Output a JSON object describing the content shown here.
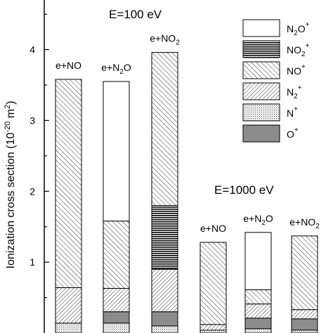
{
  "chart_data": {
    "type": "bar",
    "stacked": true,
    "title": "",
    "ylabel": {
      "main": "Ionization cross section (10",
      "exp": "-20",
      "unit": " m",
      "unit_exp": "2",
      "close": ")"
    },
    "ylim": [
      0,
      4.7
    ],
    "yticks": [
      1,
      2,
      3,
      4
    ],
    "grid": false,
    "legend_position": "top-right",
    "groups": [
      {
        "label": "E=100 eV",
        "label_parts": {
          "main": "E=100 eV"
        }
      },
      {
        "label": "E=1000 eV",
        "label_parts": {
          "main": "E=1000 eV"
        }
      }
    ],
    "categories": [
      {
        "label": "e+NO",
        "parts": {
          "main": "e+NO",
          "sub": ""
        },
        "group": 0
      },
      {
        "label": "e+N2O",
        "parts": {
          "main": "e+N",
          "sub": "2",
          "tail": "O"
        },
        "group": 0
      },
      {
        "label": "e+NO2",
        "parts": {
          "main": "e+NO",
          "sub": "2",
          "tail": ""
        },
        "group": 0
      },
      {
        "label": "e+NO",
        "parts": {
          "main": "e+NO",
          "sub": ""
        },
        "group": 1
      },
      {
        "label": "e+N2O",
        "parts": {
          "main": "e+N",
          "sub": "2",
          "tail": "O"
        },
        "group": 1
      },
      {
        "label": "e+NO2",
        "parts": {
          "main": "e+NO",
          "sub": "2",
          "tail": ""
        },
        "group": 1
      }
    ],
    "series": [
      {
        "key": "N+",
        "legend": {
          "main": "N",
          "sub": "",
          "sup": "+"
        },
        "pattern": "dots",
        "values": [
          0.14,
          0.14,
          0.1,
          0.04,
          0.06,
          0.04
        ]
      },
      {
        "key": "O+",
        "legend": {
          "main": "O",
          "sub": "",
          "sup": "+"
        },
        "pattern": "gray",
        "values": [
          0.0,
          0.16,
          0.2,
          0.0,
          0.15,
          0.16
        ]
      },
      {
        "key": "N2+",
        "legend": {
          "main": "N",
          "sub": "2",
          "sup": "+"
        },
        "pattern": "hatch-fine",
        "values": [
          0.5,
          0.33,
          0.6,
          0.08,
          0.2,
          0.13
        ]
      },
      {
        "key": "NO2+",
        "legend": {
          "main": "NO",
          "sub": "2",
          "sup": "+"
        },
        "pattern": "horizontal",
        "values": [
          0.0,
          0.0,
          0.9,
          0.0,
          0.0,
          0.0
        ]
      },
      {
        "key": "NO+",
        "legend": {
          "main": "NO",
          "sub": "",
          "sup": "+"
        },
        "pattern": "hatch-coarse",
        "values": [
          2.94,
          0.95,
          2.16,
          1.16,
          0.2,
          1.04
        ]
      },
      {
        "key": "N2O+",
        "legend": {
          "main": "N",
          "sub": "2",
          "tail": "O",
          "sup": "+"
        },
        "pattern": "white",
        "values": [
          0.0,
          1.97,
          0.0,
          0.0,
          0.81,
          0.0
        ]
      }
    ],
    "legend_order": [
      "N2O+",
      "NO2+",
      "NO+",
      "N2+",
      "N+",
      "O+"
    ]
  }
}
